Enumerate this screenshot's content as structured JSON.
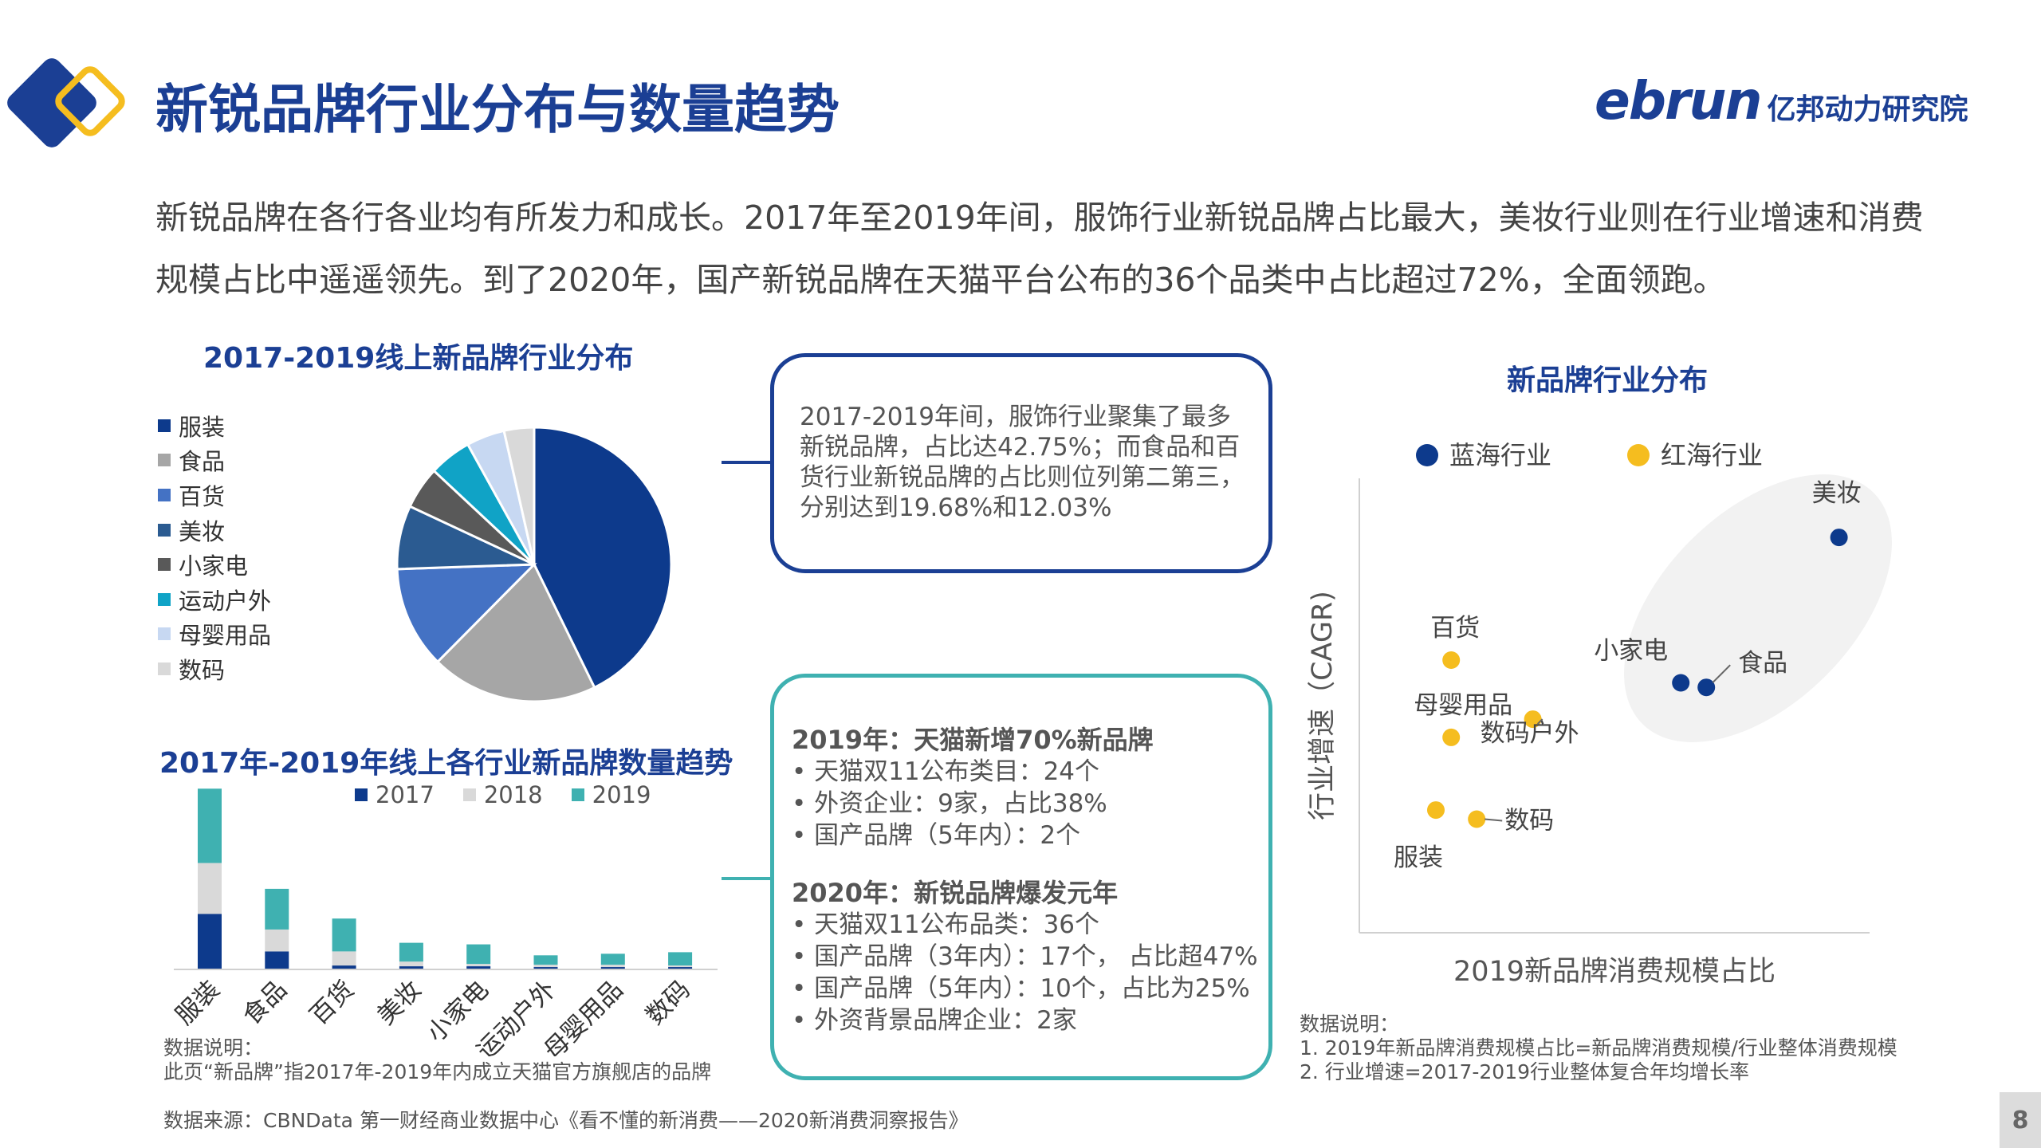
{
  "header": {
    "title": "新锐品牌行业分布与数量趋势",
    "brand_logo": "ebrun",
    "brand_name": "亿邦动力研究院"
  },
  "intro": "新锐品牌在各行各业均有所发力和成长。2017年至2019年间，服饰行业新锐品牌占比最大，美妆行业则在行业增速和消费规模占比中遥遥领先。到了2020年，国产新锐品牌在天猫平台公布的36个品类中占比超过72%，全面领跑。",
  "colors": {
    "navy": "#0d3a8c",
    "gray": "#a6a6a6",
    "blue": "#4472c4",
    "steel": "#2b5b91",
    "dark": "#595959",
    "teal": "#10a3c6",
    "light_blue": "#c7d8f2",
    "light_gray": "#d9d9d9",
    "bar_2018": "#d9d9d9",
    "bar_2019": "#3fb1b1",
    "gold": "#f5bd1f"
  },
  "chart_data": [
    {
      "type": "pie",
      "title": "2017-2019线上新品牌行业分布",
      "legend_position": "left",
      "labels": [
        "服装",
        "食品",
        "百货",
        "美妆",
        "小家电",
        "运动户外",
        "母婴用品",
        "数码"
      ],
      "values": [
        42.75,
        19.68,
        12.03,
        7.5,
        5.0,
        5.0,
        4.5,
        3.54
      ]
    },
    {
      "type": "bar",
      "stacked": true,
      "title": "2017年-2019年线上各行业新品牌数量趋势",
      "legend_position": "top",
      "categories": [
        "服装",
        "食品",
        "百货",
        "美妆",
        "小家电",
        "运动户外",
        "母婴用品",
        "数码"
      ],
      "series": [
        {
          "name": "2017",
          "values": [
            70,
            22,
            4,
            3,
            3,
            2,
            2,
            2
          ]
        },
        {
          "name": "2018",
          "values": [
            65,
            28,
            18,
            6,
            3,
            3,
            3,
            2
          ]
        },
        {
          "name": "2019",
          "values": [
            95,
            52,
            42,
            24,
            25,
            12,
            14,
            17
          ]
        }
      ]
    },
    {
      "type": "scatter",
      "title": "新品牌行业分布",
      "xlabel": "2019新品牌消费规模占比",
      "ylabel": "行业增速（CAGR)",
      "legend_position": "top",
      "series": [
        {
          "name": "蓝海行业",
          "points": [
            {
              "label": "美妆",
              "x": 0.94,
              "y": 0.87
            },
            {
              "label": "小家电",
              "x": 0.63,
              "y": 0.55
            },
            {
              "label": "食品",
              "x": 0.68,
              "y": 0.54
            }
          ]
        },
        {
          "name": "红海行业",
          "points": [
            {
              "label": "百货",
              "x": 0.18,
              "y": 0.6
            },
            {
              "label": "母婴用品",
              "x": 0.18,
              "y": 0.43
            },
            {
              "label": "数码户外",
              "x": 0.34,
              "y": 0.47
            },
            {
              "label": "服装",
              "x": 0.15,
              "y": 0.27
            },
            {
              "label": "数码",
              "x": 0.23,
              "y": 0.25
            }
          ]
        }
      ]
    }
  ],
  "callout1": "2017-2019年间，服饰行业聚集了最多新锐品牌，占比达42.75%；而食品和百货行业新锐品牌的占比则位列第二第三，分别达到19.68%和12.03%",
  "callout2": {
    "h1": "2019年：天猫新增70%新品牌",
    "list1": [
      "• 天猫双11公布类目：24个",
      "• 外资企业：9家，占比38%",
      "• 国产品牌（5年内）：2个"
    ],
    "h2": "2020年：新锐品牌爆发元年",
    "list2": [
      "• 天猫双11公布品类：36个",
      "• 国产品牌（3年内）：17个， 占比超47%",
      "• 国产品牌（5年内）：10个，占比为25%",
      "• 外资背景品牌企业：2家"
    ]
  },
  "notes_left": [
    "数据说明：",
    "此页“新品牌”指2017年-2019年内成立天猫官方旗舰店的品牌"
  ],
  "notes_right": [
    "数据说明：",
    "1.   2019年新品牌消费规模占比=新品牌消费规模/行业整体消费规模",
    "2.   行业增速=2017-2019行业整体复合年均增长率"
  ],
  "source": "数据来源：CBNData 第一财经商业数据中心《看不懂的新消费——2020新消费洞察报告》",
  "page_number": "8"
}
